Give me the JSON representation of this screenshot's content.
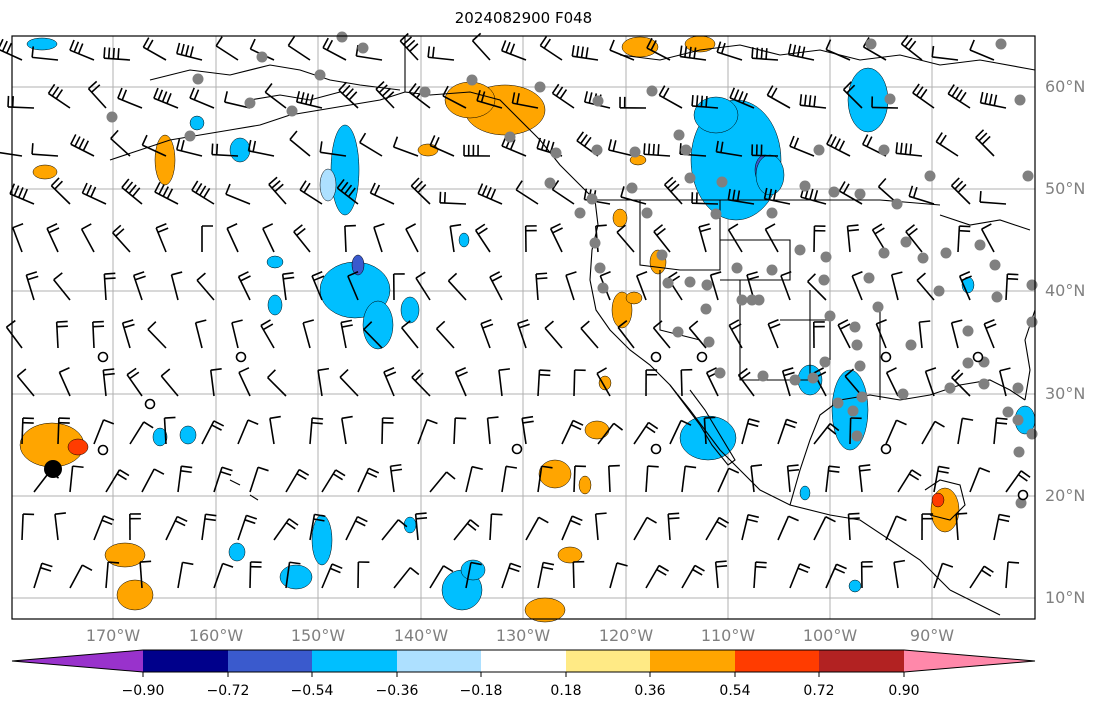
{
  "title": "2024082900 F048",
  "lat_labels": [
    "60°N",
    "50°N",
    "40°N",
    "30°N",
    "20°N",
    "10°N"
  ],
  "lon_labels": [
    "170°W",
    "160°W",
    "150°W",
    "140°W",
    "130°W",
    "120°W",
    "110°W",
    "100°W",
    "90°W"
  ],
  "colorbar": {
    "colors": [
      "#9932CC",
      "#00008B",
      "#3A5ACD",
      "#00BFFF",
      "#ADE0FF",
      "#FFFFFF",
      "#FFEA85",
      "#FFA500",
      "#FF3C00",
      "#B22222",
      "#FF88AA"
    ],
    "tick_labels": [
      "−0.90",
      "−0.72",
      "−0.54",
      "−0.36",
      "−0.18",
      "0.18",
      "0.36",
      "0.54",
      "0.72",
      "0.90"
    ]
  },
  "legend_colors": {
    "negative": "#00BFFF",
    "negative_light": "#ADE0FF",
    "negative_dark": "#3A5ACD",
    "positive": "#FFA500",
    "positive_strong": "#FF3C00",
    "positive_light": "#FFEA85",
    "station_marker": "#808080"
  }
}
